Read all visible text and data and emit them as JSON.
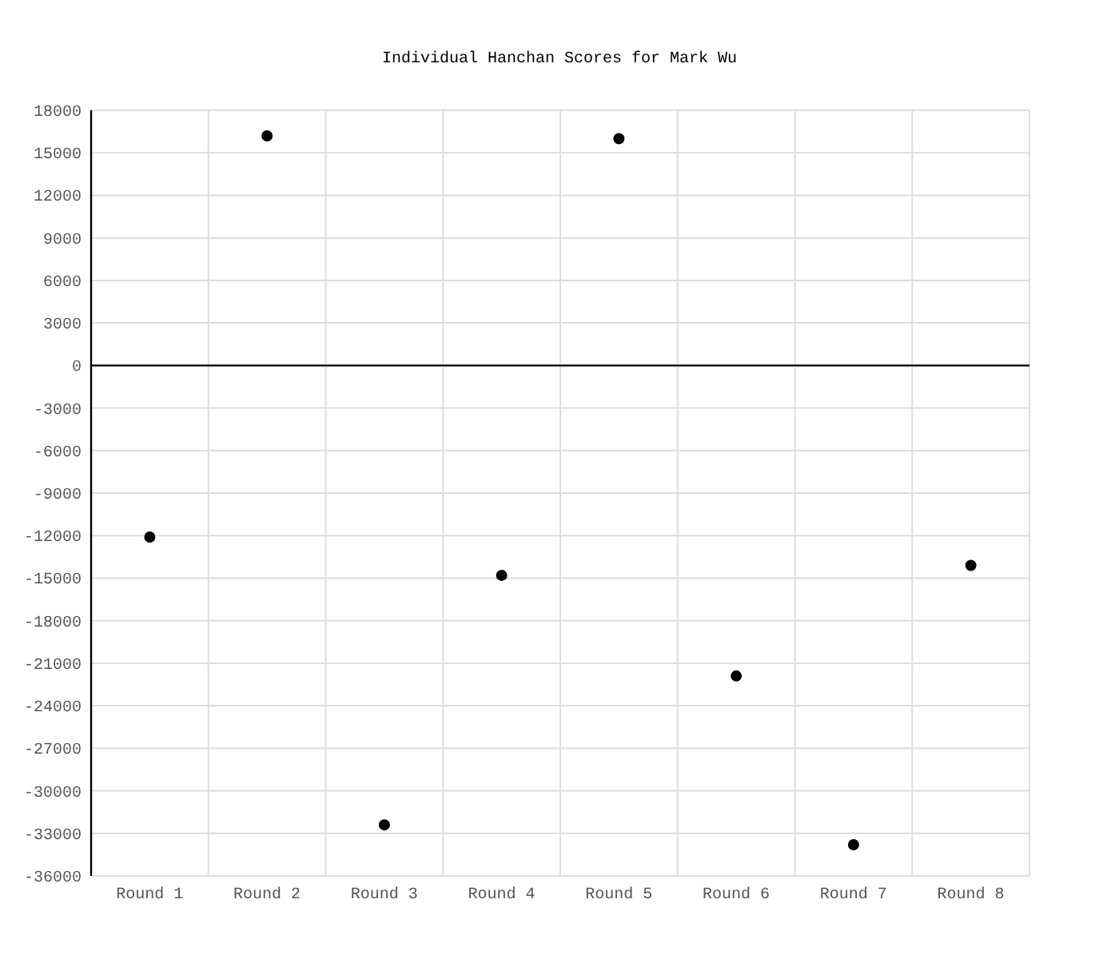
{
  "chart_data": {
    "type": "scatter",
    "title": "Individual Hanchan Scores for Mark Wu",
    "categories": [
      "Round 1",
      "Round 2",
      "Round 3",
      "Round 4",
      "Round 5",
      "Round 6",
      "Round 7",
      "Round 8"
    ],
    "series": [
      {
        "color": "#000000",
        "values": [
          -12100,
          16200,
          -32400,
          -14800,
          16000,
          -21900,
          -33800,
          -14100
        ]
      }
    ],
    "ylim": [
      -36000,
      18000
    ],
    "yticks": [
      -36000,
      -33000,
      -30000,
      -27000,
      -24000,
      -21000,
      -18000,
      -15000,
      -12000,
      -9000,
      -6000,
      -3000,
      0,
      3000,
      6000,
      9000,
      12000,
      15000,
      18000
    ],
    "grid": true,
    "marker": "circle",
    "ref_lines": [
      {
        "axis": "y",
        "value": 0,
        "color": "#000000"
      }
    ]
  }
}
